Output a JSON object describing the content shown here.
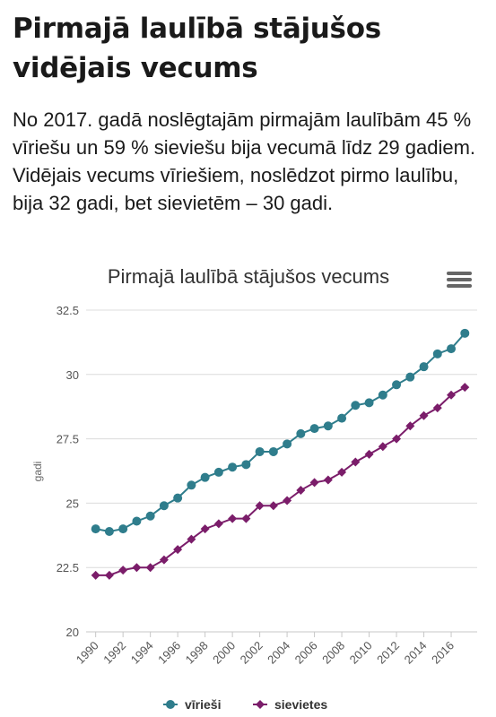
{
  "article": {
    "heading": "Pirmajā laulībā stājušos vidējais vecums",
    "intro": "No 2017. gadā noslēgtajām pirmajām laulībām 45 % vīriešu un 59 % sieviešu bija vecumā līdz 29 gadiem. Vidējais vecums vīriešiem, noslēdzot pirmo laulību, bija 32 gadi, bet sievietēm – 30 gadi."
  },
  "menu_icon": "hamburger-menu-icon",
  "chart_data": {
    "type": "line",
    "title": "Pirmajā laulībā stājušos vecums",
    "xlabel": "",
    "ylabel": "gadi",
    "ylim": [
      20,
      32.5
    ],
    "yticks": [
      "20",
      "22.5",
      "25",
      "27.5",
      "30",
      "32.5"
    ],
    "xticks": [
      "1990",
      "1992",
      "1994",
      "1996",
      "1998",
      "2000",
      "2002",
      "2004",
      "2006",
      "2008",
      "2010",
      "2012",
      "2014",
      "2016"
    ],
    "grid": true,
    "legend_position": "bottom",
    "x": [
      1990,
      1991,
      1992,
      1993,
      1994,
      1995,
      1996,
      1997,
      1998,
      1999,
      2000,
      2001,
      2002,
      2003,
      2004,
      2005,
      2006,
      2007,
      2008,
      2009,
      2010,
      2011,
      2012,
      2013,
      2014,
      2015,
      2016,
      2017
    ],
    "series": [
      {
        "name": "vīrieši",
        "color": "#2f7d8c",
        "marker": "circle",
        "values": [
          24.0,
          23.9,
          24.0,
          24.3,
          24.5,
          24.9,
          25.2,
          25.7,
          26.0,
          26.2,
          26.4,
          26.5,
          27.0,
          27.0,
          27.3,
          27.7,
          27.9,
          28.0,
          28.3,
          28.8,
          28.9,
          29.2,
          29.6,
          29.9,
          30.3,
          30.8,
          31.0,
          31.6
        ]
      },
      {
        "name": "sievietes",
        "color": "#7b1d6a",
        "marker": "diamond",
        "values": [
          22.2,
          22.2,
          22.4,
          22.5,
          22.5,
          22.8,
          23.2,
          23.6,
          24.0,
          24.2,
          24.4,
          24.4,
          24.9,
          24.9,
          25.1,
          25.5,
          25.8,
          25.9,
          26.2,
          26.6,
          26.9,
          27.2,
          27.5,
          28.0,
          28.4,
          28.7,
          29.2,
          29.5
        ]
      }
    ]
  }
}
